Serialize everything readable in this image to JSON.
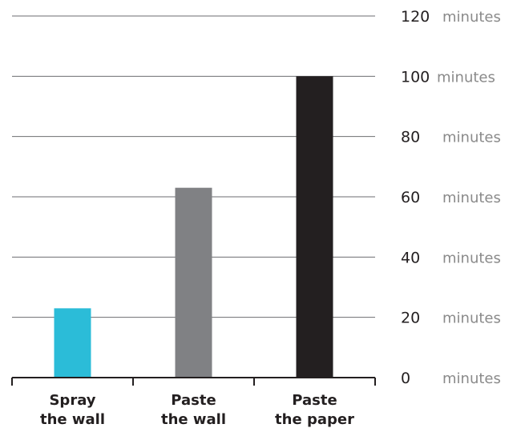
{
  "chart_data": {
    "type": "bar",
    "categories": [
      [
        "Spray",
        "the wall"
      ],
      [
        "Paste",
        "the wall"
      ],
      [
        "Paste",
        "the paper"
      ]
    ],
    "values": [
      23,
      63,
      100
    ],
    "colors": [
      "#2bbcd8",
      "#808184",
      "#231f20"
    ],
    "ylim": [
      0,
      120
    ],
    "yticks": [
      0,
      20,
      40,
      60,
      80,
      100,
      120
    ],
    "ytick_unit": "minutes",
    "grid": true,
    "title": "",
    "xlabel": "",
    "ylabel": ""
  }
}
